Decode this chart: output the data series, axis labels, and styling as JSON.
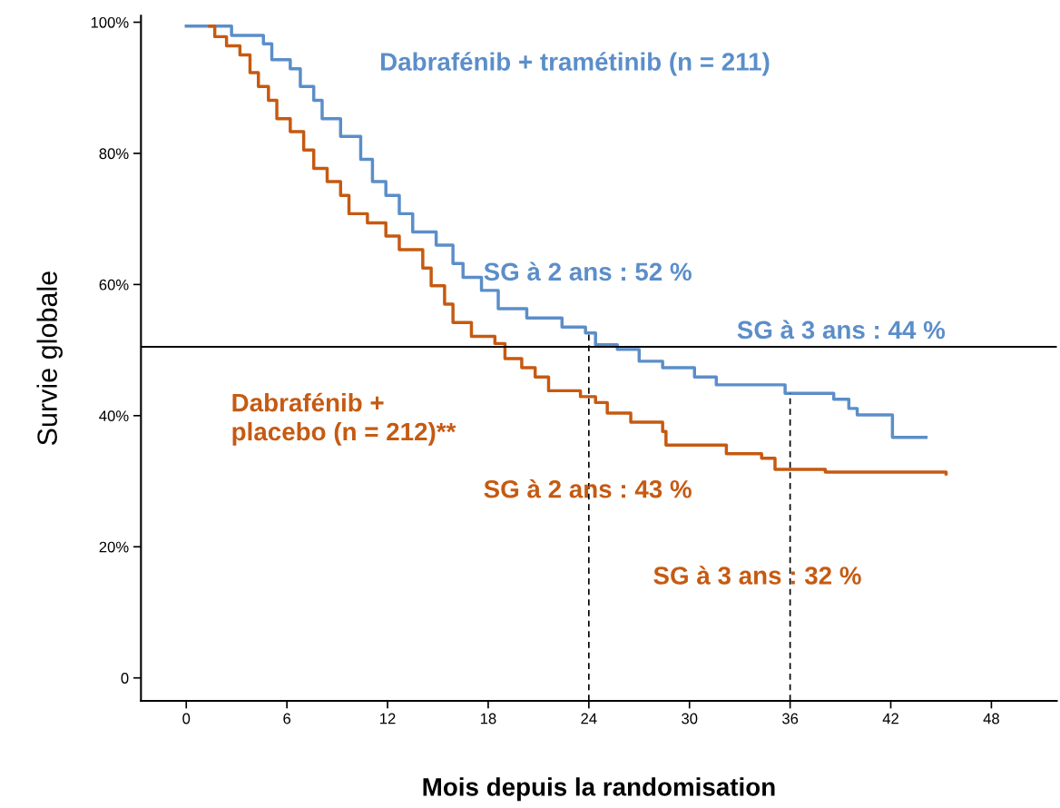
{
  "chart_data": {
    "type": "step",
    "xlabel": "Mois depuis la randomisation",
    "ylabel": "Survie globale",
    "xlim": [
      -2.7,
      51.9
    ],
    "ylim": [
      -3.5,
      101
    ],
    "xticks": [
      0,
      6,
      12,
      18,
      24,
      30,
      36,
      42,
      48
    ],
    "yticks": [
      {
        "value": 0,
        "label": "0"
      },
      {
        "value": 20,
        "label": "20%"
      },
      {
        "value": 40,
        "label": "40%"
      },
      {
        "value": 60,
        "label": "60%"
      },
      {
        "value": 80,
        "label": "80%"
      },
      {
        "value": 100,
        "label": "100%"
      }
    ],
    "grid": false,
    "series": [
      {
        "name": "Dabrafénib + tramétinib (n = 211)",
        "color": "#5b8ec9",
        "x": [
          0,
          2.4,
          2.7,
          4.6,
          5.1,
          6.2,
          6.8,
          7.6,
          8.1,
          9.2,
          10.4,
          11.1,
          11.9,
          12.7,
          13.5,
          14.9,
          15.9,
          16.5,
          17.6,
          18.6,
          20.3,
          22.4,
          23.8,
          24.4,
          25.7,
          27,
          28.4,
          30.3,
          31.6,
          35.7,
          38.6,
          39.5,
          40,
          41.9,
          42.1,
          44.1
        ],
        "values": [
          99.4,
          99.4,
          98,
          96.7,
          94.3,
          92.9,
          90.2,
          88.1,
          85.3,
          82.6,
          79.1,
          75.7,
          73.6,
          70.8,
          68,
          66,
          63.2,
          61.1,
          59.1,
          56.3,
          54.9,
          53.5,
          52.6,
          50.8,
          50.1,
          48.3,
          47.3,
          45.9,
          44.7,
          43.4,
          42.5,
          41.1,
          40.1,
          40.1,
          36.7,
          36.7
        ]
      },
      {
        "name": "Dabrafénib +\nplacebo (n = 212)**",
        "color": "#c55a11",
        "x": [
          1.4,
          1.7,
          2.4,
          3.2,
          3.8,
          4.3,
          4.9,
          5.4,
          6.2,
          7,
          7.6,
          8.4,
          9.2,
          9.7,
          10.8,
          11.9,
          12.7,
          14.1,
          14.6,
          15.4,
          15.9,
          17,
          18.4,
          19,
          20,
          20.8,
          21.6,
          23.5,
          24.4,
          25.1,
          26.5,
          28.4,
          28.6,
          31.6,
          32.2,
          34.3,
          35.1,
          38.1,
          45.3
        ],
        "values": [
          99.4,
          97.8,
          96.4,
          95,
          92.3,
          90.2,
          88.1,
          85.3,
          83.3,
          80.5,
          77.7,
          75.7,
          73.6,
          70.8,
          69.4,
          67.4,
          65.3,
          62.5,
          59.8,
          57,
          54.2,
          52.1,
          51,
          48.7,
          47.3,
          45.9,
          43.8,
          42.9,
          42,
          40.4,
          39,
          37.6,
          35.5,
          35.5,
          34.2,
          33.5,
          31.8,
          31.4,
          31.1
        ]
      }
    ],
    "ref_lines": [
      {
        "axis": "y",
        "value": 50.5,
        "color": "#000000",
        "line_style": "solid"
      },
      {
        "axis": "x",
        "value": 24,
        "color": "#000000",
        "line_style": "dashed"
      },
      {
        "axis": "x",
        "value": 36,
        "color": "#000000",
        "line_style": "dashed"
      }
    ],
    "annotations": [
      "SG à 2 ans : 52 %",
      "SG à 3 ans : 44 %",
      "SG à 2 ans : 43 %",
      "SG à 3 ans : 32 %"
    ]
  }
}
